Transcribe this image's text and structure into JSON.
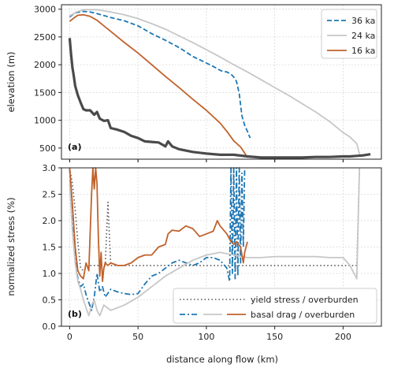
{
  "chart_data": [
    {
      "panel": "a",
      "type": "line",
      "xlim": [
        -6,
        228
      ],
      "ylim": [
        300,
        3080
      ],
      "xticks": [
        0,
        50,
        100,
        150,
        200
      ],
      "yticks": [
        500,
        1000,
        1500,
        2000,
        2500,
        3000
      ],
      "xlabel": "",
      "ylabel": "elevation (m)",
      "tag": "(a)",
      "grid": true,
      "legend_placement": "top-right",
      "colors": {
        "36 ka": "#1f77b4",
        "24 ka": "#c7c7c7",
        "16 ka": "#c0622b",
        "bed": "#4a4a4a"
      },
      "series": [
        {
          "name": "36 ka",
          "style": "dashed",
          "x": [
            0,
            2,
            5,
            10,
            15,
            20,
            30,
            40,
            50,
            60,
            70,
            80,
            90,
            100,
            105,
            110,
            112,
            115,
            118,
            120,
            122,
            124,
            126,
            128,
            130,
            132
          ],
          "y": [
            2860,
            2900,
            2940,
            2960,
            2950,
            2920,
            2850,
            2790,
            2700,
            2560,
            2440,
            2310,
            2150,
            2030,
            1970,
            1900,
            1880,
            1870,
            1830,
            1780,
            1700,
            1480,
            1080,
            910,
            800,
            680
          ]
        },
        {
          "name": "24 ka",
          "style": "solid",
          "x": [
            0,
            5,
            10,
            20,
            30,
            40,
            50,
            60,
            70,
            80,
            90,
            100,
            110,
            120,
            130,
            140,
            150,
            160,
            170,
            180,
            190,
            200,
            205,
            210,
            212
          ],
          "y": [
            2880,
            2950,
            2990,
            2990,
            2950,
            2900,
            2830,
            2740,
            2640,
            2520,
            2400,
            2270,
            2140,
            2000,
            1870,
            1730,
            1590,
            1450,
            1300,
            1150,
            980,
            780,
            700,
            580,
            390
          ]
        },
        {
          "name": "16 ka",
          "style": "solid",
          "x": [
            0,
            3,
            6,
            10,
            15,
            20,
            30,
            40,
            50,
            60,
            70,
            80,
            90,
            100,
            110,
            115,
            120,
            125,
            128,
            130
          ],
          "y": [
            2780,
            2840,
            2890,
            2900,
            2870,
            2800,
            2600,
            2400,
            2210,
            2000,
            1790,
            1590,
            1380,
            1180,
            950,
            800,
            630,
            520,
            410,
            330
          ]
        },
        {
          "name": "bed",
          "style": "thick",
          "x": [
            0,
            1,
            2,
            3,
            4,
            6,
            8,
            10,
            12,
            15,
            18,
            20,
            22,
            25,
            28,
            30,
            35,
            40,
            45,
            50,
            55,
            60,
            65,
            70,
            72,
            75,
            80,
            90,
            100,
            110,
            120,
            130,
            140,
            150,
            160,
            170,
            180,
            190,
            200,
            205,
            210,
            215,
            220
          ],
          "y": [
            2480,
            2200,
            1950,
            1800,
            1620,
            1450,
            1320,
            1200,
            1180,
            1180,
            1100,
            1150,
            1030,
            990,
            1000,
            860,
            830,
            790,
            720,
            680,
            620,
            610,
            600,
            530,
            620,
            530,
            480,
            430,
            400,
            380,
            380,
            350,
            330,
            330,
            330,
            330,
            340,
            340,
            350,
            350,
            360,
            370,
            390
          ]
        }
      ]
    },
    {
      "panel": "b",
      "type": "line",
      "xlim": [
        -6,
        228
      ],
      "ylim": [
        0,
        3.0
      ],
      "xticks": [
        0,
        50,
        100,
        150,
        200
      ],
      "xtick_labels": [
        "0",
        "50",
        "100",
        "150",
        "200"
      ],
      "yticks": [
        0.0,
        0.5,
        1.0,
        1.5,
        2.0,
        2.5,
        3.0
      ],
      "ytick_labels": [
        "0.0",
        "0.5",
        "1.0",
        "1.5",
        "2.0",
        "2.5",
        "3.0"
      ],
      "xlabel": "distance along flow (km)",
      "ylabel": "normalized stress (%)",
      "tag": "(b)",
      "grid": true,
      "legend_placement": "bottom-right",
      "legend_entries": [
        "yield stress / overburden",
        "basal drag / overburden"
      ],
      "series": [
        {
          "name": "yield stress / overburden",
          "style": "dotted",
          "x": [
            0,
            2,
            4,
            6,
            8,
            10,
            12,
            15,
            18,
            20,
            22,
            24,
            26,
            28,
            30,
            40,
            60,
            80,
            100,
            115,
            120,
            125,
            130,
            140,
            160,
            180,
            200,
            210,
            212
          ],
          "y": [
            3.0,
            2.7,
            2.2,
            1.6,
            1.1,
            1.05,
            1.1,
            1.15,
            1.15,
            1.15,
            1.15,
            1.15,
            1.15,
            2.35,
            1.15,
            1.15,
            1.15,
            1.15,
            1.15,
            1.15,
            1.15,
            1.15,
            1.15,
            1.15,
            1.15,
            1.15,
            1.15,
            1.15,
            3.0
          ]
        },
        {
          "name": "36 ka",
          "style": "dashdot",
          "x": [
            0,
            2,
            4,
            6,
            8,
            10,
            12,
            14,
            16,
            18,
            20,
            22,
            24,
            26,
            30,
            35,
            40,
            45,
            50,
            55,
            60,
            65,
            70,
            75,
            80,
            85,
            90,
            95,
            100,
            105,
            110,
            115,
            117,
            118,
            119,
            120,
            121,
            122,
            123,
            124,
            125,
            126,
            127,
            128
          ],
          "y": [
            3.0,
            2.0,
            1.3,
            0.9,
            0.75,
            0.8,
            0.6,
            0.45,
            0.3,
            0.55,
            1.0,
            0.65,
            0.75,
            0.55,
            0.7,
            0.65,
            0.62,
            0.6,
            0.62,
            0.8,
            0.95,
            1.0,
            1.1,
            1.2,
            1.25,
            1.2,
            1.15,
            1.2,
            1.3,
            1.3,
            1.25,
            1.1,
            0.85,
            3.0,
            1.0,
            3.0,
            0.9,
            3.0,
            0.95,
            3.0,
            1.2,
            2.9,
            1.5,
            3.0
          ]
        },
        {
          "name": "24 ka",
          "style": "solid",
          "x": [
            0,
            2,
            4,
            6,
            8,
            10,
            12,
            14,
            16,
            18,
            20,
            22,
            25,
            30,
            40,
            50,
            60,
            70,
            80,
            90,
            100,
            110,
            120,
            130,
            140,
            150,
            160,
            170,
            180,
            190,
            200,
            205,
            210,
            212
          ],
          "y": [
            2.7,
            1.8,
            1.2,
            0.85,
            0.7,
            0.5,
            0.35,
            0.2,
            0.4,
            0.5,
            0.3,
            0.2,
            0.4,
            0.3,
            0.4,
            0.55,
            0.75,
            0.95,
            1.1,
            1.25,
            1.35,
            1.4,
            1.35,
            1.3,
            1.3,
            1.32,
            1.32,
            1.32,
            1.32,
            1.3,
            1.3,
            1.15,
            0.9,
            3.0
          ]
        },
        {
          "name": "16 ka",
          "style": "solid",
          "x": [
            0,
            2,
            4,
            6,
            8,
            10,
            12,
            14,
            16,
            17,
            18,
            19,
            20,
            21,
            22,
            23,
            24,
            25,
            26,
            28,
            30,
            35,
            40,
            45,
            50,
            55,
            60,
            65,
            70,
            72,
            75,
            80,
            85,
            90,
            95,
            100,
            105,
            108,
            110,
            115,
            118,
            120,
            122,
            125,
            127,
            128,
            130
          ],
          "y": [
            3.0,
            2.3,
            1.5,
            1.05,
            0.95,
            0.9,
            1.2,
            1.05,
            2.5,
            3.0,
            2.6,
            3.0,
            2.7,
            1.7,
            0.95,
            1.4,
            0.85,
            1.1,
            1.2,
            1.15,
            1.2,
            1.15,
            1.15,
            1.2,
            1.3,
            1.35,
            1.35,
            1.5,
            1.55,
            1.75,
            1.82,
            1.8,
            1.9,
            1.85,
            1.7,
            1.75,
            1.8,
            2.0,
            1.9,
            1.75,
            1.6,
            1.55,
            1.6,
            1.5,
            1.2,
            1.4,
            1.6
          ]
        }
      ]
    }
  ]
}
